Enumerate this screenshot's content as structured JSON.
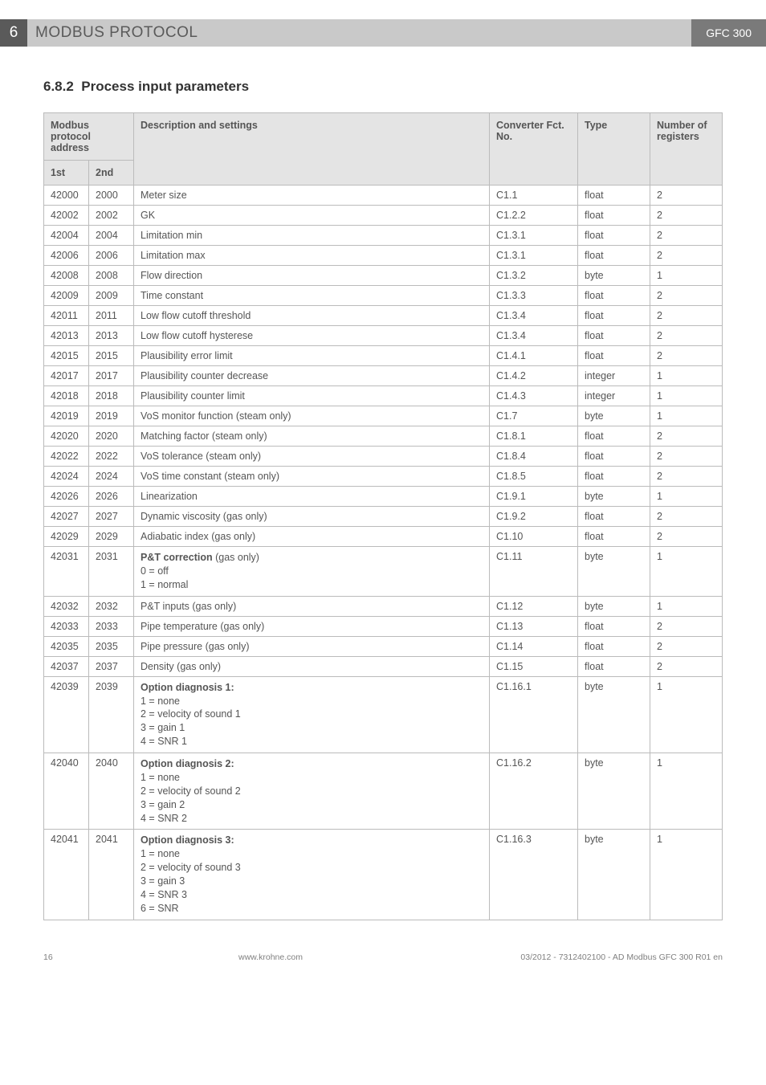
{
  "header": {
    "chapter_num": "6",
    "chapter_title": "MODBUS PROTOCOL",
    "badge": "GFC 300"
  },
  "section": {
    "number": "6.8.2",
    "title": "Process input parameters"
  },
  "table": {
    "head": {
      "addr": "Modbus protocol address",
      "addr1": "1st",
      "addr2": "2nd",
      "desc": "Description and settings",
      "conv": "Converter Fct. No.",
      "type": "Type",
      "num": "Number of registers"
    },
    "rows": [
      {
        "a1": "42000",
        "a2": "2000",
        "desc": "Meter size",
        "conv": "C1.1",
        "type": "float",
        "num": "2"
      },
      {
        "a1": "42002",
        "a2": "2002",
        "desc": "GK",
        "conv": "C1.2.2",
        "type": "float",
        "num": "2"
      },
      {
        "a1": "42004",
        "a2": "2004",
        "desc": "Limitation min",
        "conv": "C1.3.1",
        "type": "float",
        "num": "2"
      },
      {
        "a1": "42006",
        "a2": "2006",
        "desc": "Limitation max",
        "conv": "C1.3.1",
        "type": "float",
        "num": "2"
      },
      {
        "a1": "42008",
        "a2": "2008",
        "desc": "Flow direction",
        "conv": "C1.3.2",
        "type": "byte",
        "num": "1"
      },
      {
        "a1": "42009",
        "a2": "2009",
        "desc": "Time constant",
        "conv": "C1.3.3",
        "type": "float",
        "num": "2"
      },
      {
        "a1": "42011",
        "a2": "2011",
        "desc": "Low flow cutoff threshold",
        "conv": "C1.3.4",
        "type": "float",
        "num": "2"
      },
      {
        "a1": "42013",
        "a2": "2013",
        "desc": "Low flow cutoff hysterese",
        "conv": "C1.3.4",
        "type": "float",
        "num": "2"
      },
      {
        "a1": "42015",
        "a2": "2015",
        "desc": "Plausibility error limit",
        "conv": "C1.4.1",
        "type": "float",
        "num": "2"
      },
      {
        "a1": "42017",
        "a2": "2017",
        "desc": "Plausibility counter decrease",
        "conv": "C1.4.2",
        "type": "integer",
        "num": "1"
      },
      {
        "a1": "42018",
        "a2": "2018",
        "desc": "Plausibility counter limit",
        "conv": "C1.4.3",
        "type": "integer",
        "num": "1"
      },
      {
        "a1": "42019",
        "a2": "2019",
        "desc": "VoS monitor function (steam only)",
        "conv": "C1.7",
        "type": "byte",
        "num": "1"
      },
      {
        "a1": "42020",
        "a2": "2020",
        "desc": "Matching factor (steam only)",
        "conv": "C1.8.1",
        "type": "float",
        "num": "2"
      },
      {
        "a1": "42022",
        "a2": "2022",
        "desc": "VoS tolerance (steam only)",
        "conv": "C1.8.4",
        "type": "float",
        "num": "2"
      },
      {
        "a1": "42024",
        "a2": "2024",
        "desc": "VoS time constant (steam only)",
        "conv": "C1.8.5",
        "type": "float",
        "num": "2"
      },
      {
        "a1": "42026",
        "a2": "2026",
        "desc": "Linearization",
        "conv": "C1.9.1",
        "type": "byte",
        "num": "1"
      },
      {
        "a1": "42027",
        "a2": "2027",
        "desc": "Dynamic viscosity (gas only)",
        "conv": "C1.9.2",
        "type": "float",
        "num": "2"
      },
      {
        "a1": "42029",
        "a2": "2029",
        "desc": "Adiabatic index (gas only)",
        "conv": "C1.10",
        "type": "float",
        "num": "2"
      },
      {
        "a1": "42031",
        "a2": "2031",
        "desc_bold": "P&T correction",
        "desc_suffix": " (gas only)",
        "desc_lines": [
          "0 = off",
          "1 = normal"
        ],
        "conv": "C1.11",
        "type": "byte",
        "num": "1"
      },
      {
        "a1": "42032",
        "a2": "2032",
        "desc": "P&T inputs (gas only)",
        "conv": "C1.12",
        "type": "byte",
        "num": "1"
      },
      {
        "a1": "42033",
        "a2": "2033",
        "desc": "Pipe temperature (gas only)",
        "conv": "C1.13",
        "type": "float",
        "num": "2"
      },
      {
        "a1": "42035",
        "a2": "2035",
        "desc": "Pipe pressure (gas only)",
        "conv": "C1.14",
        "type": "float",
        "num": "2"
      },
      {
        "a1": "42037",
        "a2": "2037",
        "desc": "Density (gas only)",
        "conv": "C1.15",
        "type": "float",
        "num": "2"
      },
      {
        "a1": "42039",
        "a2": "2039",
        "desc_bold": "Option diagnosis 1:",
        "desc_lines": [
          "1 = none",
          "2 = velocity of sound 1",
          "3 = gain 1",
          "4 = SNR 1"
        ],
        "conv": "C1.16.1",
        "type": "byte",
        "num": "1"
      },
      {
        "a1": "42040",
        "a2": "2040",
        "desc_bold": "Option diagnosis 2:",
        "desc_lines": [
          "1 = none",
          "2 = velocity of sound 2",
          "3 = gain 2",
          "4 = SNR 2"
        ],
        "conv": "C1.16.2",
        "type": "byte",
        "num": "1"
      },
      {
        "a1": "42041",
        "a2": "2041",
        "desc_bold": "Option diagnosis 3:",
        "desc_lines": [
          "1 = none",
          "2 = velocity of sound 3",
          "3 = gain 3",
          "4 = SNR 3",
          "6 = SNR"
        ],
        "conv": "C1.16.3",
        "type": "byte",
        "num": "1"
      }
    ]
  },
  "footer": {
    "page": "16",
    "center": "www.krohne.com",
    "right": "03/2012 - 7312402100 - AD Modbus GFC 300 R01 en"
  }
}
